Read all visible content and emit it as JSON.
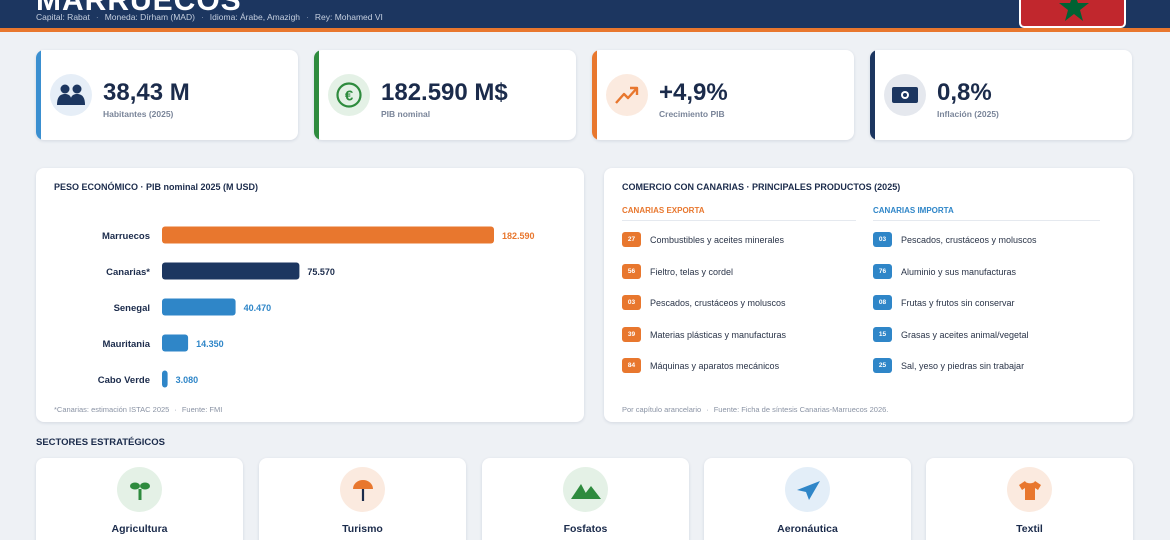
{
  "header": {
    "title": "MARRUECOS",
    "capital": "Capital: Rabat",
    "currency": "Moneda: Dírham (MAD)",
    "language": "Idioma: Árabe, Amazigh",
    "king": "Rey: Mohamed VI",
    "separator": "·",
    "flag_colors": {
      "field": "#c1272d",
      "star": "#006233"
    }
  },
  "kpis": [
    {
      "value": "38,43 M",
      "label": "Habitantes (2025)",
      "icon": "people-icon",
      "accent": "#3a8fd0"
    },
    {
      "value": "182.590 M$",
      "label": "PIB nominal",
      "icon": "euro-icon",
      "accent": "#2e8b3e"
    },
    {
      "value": "+4,9%",
      "label": "Crecimiento PIB",
      "icon": "trend-up-icon",
      "accent": "#e8772e"
    },
    {
      "value": "0,8%",
      "label": "Inflación (2025)",
      "icon": "money-icon",
      "accent": "#1c3660"
    }
  ],
  "gdp_panel": {
    "title": "PESO ECONÓMICO · PIB nominal 2025 (M USD)",
    "footnote": "*Canarias: estimación ISTAC 2025",
    "source": "Fuente: FMI",
    "separator": "·"
  },
  "chart_data": {
    "type": "bar",
    "orientation": "horizontal",
    "title": "PESO ECONÓMICO · PIB nominal 2025 (M USD)",
    "categories": [
      "Marruecos",
      "Canarias*",
      "Senegal",
      "Mauritania",
      "Cabo Verde"
    ],
    "values": [
      182590,
      75570,
      40470,
      14350,
      3080
    ],
    "value_labels": [
      "182.590",
      "75.570",
      "40.470",
      "14.350",
      "3.080"
    ],
    "colors": [
      "#e8772e",
      "#1c3660",
      "#2f86c8",
      "#2f86c8",
      "#2f86c8"
    ],
    "label_colors": [
      "#e8772e",
      "#1b2b4b",
      "#2f86c8",
      "#2f86c8",
      "#2f86c8"
    ],
    "xlim": [
      0,
      182590
    ],
    "grid": false
  },
  "trade_panel": {
    "title": "COMERCIO CON CANARIAS · PRINCIPALES PRODUCTOS (2025)",
    "export_header": "CANARIAS EXPORTA",
    "import_header": "CANARIAS IMPORTA",
    "export_color": "#e8772e",
    "import_color": "#2f86c8",
    "exports": [
      {
        "code": "27",
        "label": "Combustibles y aceites minerales"
      },
      {
        "code": "56",
        "label": "Fieltro, telas y cordel"
      },
      {
        "code": "03",
        "label": "Pescados, crustáceos y moluscos"
      },
      {
        "code": "39",
        "label": "Materias plásticas y manufacturas"
      },
      {
        "code": "84",
        "label": "Máquinas y aparatos mecánicos"
      }
    ],
    "imports": [
      {
        "code": "03",
        "label": "Pescados, crustáceos y moluscos"
      },
      {
        "code": "76",
        "label": "Aluminio y sus manufacturas"
      },
      {
        "code": "08",
        "label": "Frutas y frutos sin conservar"
      },
      {
        "code": "15",
        "label": "Grasas y aceites animal/vegetal"
      },
      {
        "code": "25",
        "label": "Sal, yeso y piedras sin trabajar"
      }
    ],
    "footnote": "Por capítulo arancelario",
    "source": "Fuente: Ficha de síntesis Canarias-Marruecos 2026.",
    "separator": "·"
  },
  "sectors": {
    "title": "SECTORES ESTRATÉGICOS",
    "items": [
      {
        "name": "Agricultura",
        "icon": "sprout-icon",
        "color": "#2e8b3e"
      },
      {
        "name": "Turismo",
        "icon": "umbrella-icon",
        "color": "#e8772e"
      },
      {
        "name": "Fosfatos",
        "icon": "mountain-icon",
        "color": "#2e8b3e"
      },
      {
        "name": "Aeronáutica",
        "icon": "plane-icon",
        "color": "#2f86c8"
      },
      {
        "name": "Textil",
        "icon": "shirt-icon",
        "color": "#e8772e"
      }
    ]
  }
}
